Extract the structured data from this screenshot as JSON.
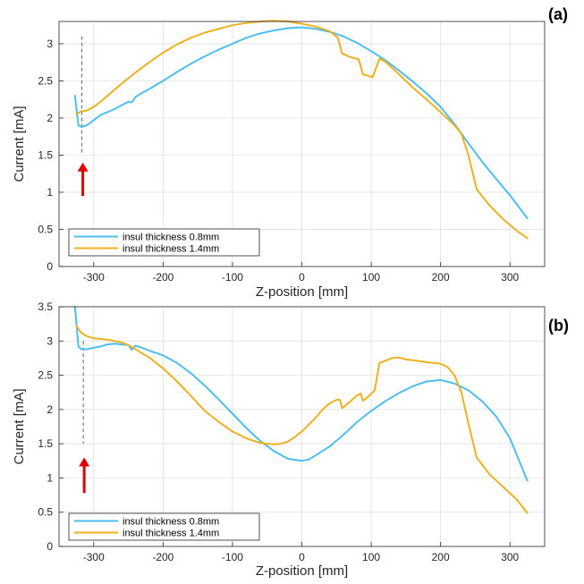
{
  "chart_data": [
    {
      "type": "line",
      "panel_label": "(a)",
      "xlabel": "Z-position [mm]",
      "ylabel": "Current [mA]",
      "xlim": [
        -350,
        350
      ],
      "ylim": [
        0,
        3.3
      ],
      "xticks": [
        -300,
        -200,
        -100,
        0,
        100,
        200,
        300
      ],
      "yticks": [
        0,
        0.5,
        1,
        1.5,
        2,
        2.5,
        3
      ],
      "ytick_labels": [
        "0",
        "0.5",
        "1",
        "1.5",
        "2",
        "2.5",
        "3"
      ],
      "grid": true,
      "legend_position": "bottom-left",
      "marker_z": -317,
      "marker_line_y": [
        1.5,
        3.1
      ],
      "arrow_y": [
        0.95,
        1.4
      ],
      "series": [
        {
          "name": "insul thickness 0.8mm",
          "color": "#4DBEEE",
          "x": [
            -327,
            -322,
            -318,
            -310,
            -300,
            -290,
            -280,
            -270,
            -260,
            -250,
            -245,
            -240,
            -230,
            -220,
            -200,
            -180,
            -160,
            -140,
            -120,
            -100,
            -80,
            -60,
            -40,
            -20,
            0,
            20,
            40,
            60,
            80,
            100,
            120,
            140,
            160,
            180,
            200,
            220,
            240,
            260,
            280,
            300,
            325
          ],
          "y": [
            2.3,
            1.9,
            1.88,
            1.9,
            1.97,
            2.04,
            2.08,
            2.12,
            2.17,
            2.22,
            2.21,
            2.28,
            2.34,
            2.39,
            2.5,
            2.62,
            2.73,
            2.83,
            2.92,
            3.0,
            3.08,
            3.14,
            3.18,
            3.21,
            3.22,
            3.2,
            3.16,
            3.1,
            3.01,
            2.9,
            2.78,
            2.64,
            2.49,
            2.33,
            2.15,
            1.92,
            1.66,
            1.41,
            1.18,
            0.96,
            0.65
          ]
        },
        {
          "name": "insul thickness 1.4mm",
          "color": "#EDB120",
          "x": [
            -325,
            -318,
            -310,
            -300,
            -290,
            -280,
            -260,
            -240,
            -220,
            -200,
            -180,
            -160,
            -140,
            -120,
            -100,
            -80,
            -60,
            -40,
            -20,
            0,
            20,
            40,
            52,
            58,
            70,
            82,
            88,
            102,
            112,
            120,
            140,
            160,
            180,
            200,
            220,
            230,
            240,
            252,
            270,
            290,
            310,
            325
          ],
          "y": [
            2.05,
            2.09,
            2.1,
            2.15,
            2.22,
            2.3,
            2.46,
            2.61,
            2.75,
            2.88,
            2.99,
            3.08,
            3.15,
            3.2,
            3.25,
            3.28,
            3.3,
            3.31,
            3.3,
            3.27,
            3.23,
            3.17,
            3.08,
            2.87,
            2.82,
            2.79,
            2.59,
            2.55,
            2.8,
            2.76,
            2.59,
            2.41,
            2.25,
            2.08,
            1.9,
            1.79,
            1.5,
            1.04,
            0.83,
            0.64,
            0.48,
            0.38
          ]
        }
      ]
    },
    {
      "type": "line",
      "panel_label": "(b)",
      "xlabel": "Z-position [mm]",
      "ylabel": "Current [mA]",
      "xlim": [
        -350,
        350
      ],
      "ylim": [
        0,
        3.5
      ],
      "xticks": [
        -300,
        -200,
        -100,
        0,
        100,
        200,
        300
      ],
      "yticks": [
        0,
        0.5,
        1,
        1.5,
        2,
        2.5,
        3,
        3.5
      ],
      "ytick_labels": [
        "0",
        "0.5",
        "1",
        "1.5",
        "2",
        "2.5",
        "3",
        "3.5"
      ],
      "grid": true,
      "legend_position": "bottom-left",
      "marker_z": -315,
      "marker_line_y": [
        1.5,
        3.0
      ],
      "arrow_y": [
        0.78,
        1.3
      ],
      "series": [
        {
          "name": "insul thickness 0.8mm",
          "color": "#4DBEEE",
          "x": [
            -327,
            -322,
            -318,
            -310,
            -300,
            -290,
            -280,
            -270,
            -260,
            -250,
            -245,
            -240,
            -230,
            -220,
            -200,
            -180,
            -160,
            -140,
            -120,
            -100,
            -80,
            -60,
            -40,
            -20,
            0,
            10,
            20,
            40,
            60,
            80,
            100,
            120,
            140,
            160,
            180,
            200,
            220,
            240,
            260,
            280,
            300,
            325
          ],
          "y": [
            3.5,
            2.92,
            2.88,
            2.88,
            2.9,
            2.92,
            2.95,
            2.96,
            2.95,
            2.94,
            2.87,
            2.93,
            2.9,
            2.86,
            2.79,
            2.68,
            2.53,
            2.35,
            2.15,
            1.94,
            1.73,
            1.54,
            1.39,
            1.28,
            1.25,
            1.27,
            1.33,
            1.46,
            1.63,
            1.82,
            1.98,
            2.12,
            2.24,
            2.34,
            2.41,
            2.43,
            2.38,
            2.28,
            2.12,
            1.9,
            1.58,
            0.96
          ]
        },
        {
          "name": "insul thickness 1.4mm",
          "color": "#EDB120",
          "x": [
            -325,
            -318,
            -310,
            -300,
            -290,
            -280,
            -270,
            -260,
            -250,
            -240,
            -220,
            -200,
            -180,
            -160,
            -140,
            -120,
            -100,
            -80,
            -60,
            -40,
            -30,
            -20,
            -10,
            0,
            10,
            20,
            30,
            40,
            50,
            55,
            58,
            62,
            70,
            80,
            85,
            88,
            95,
            105,
            112,
            120,
            130,
            140,
            150,
            160,
            180,
            200,
            210,
            220,
            230,
            240,
            252,
            270,
            290,
            310,
            325
          ],
          "y": [
            3.22,
            3.12,
            3.07,
            3.04,
            3.03,
            3.02,
            3.0,
            2.98,
            2.94,
            2.88,
            2.76,
            2.6,
            2.41,
            2.2,
            1.98,
            1.82,
            1.68,
            1.58,
            1.51,
            1.49,
            1.5,
            1.53,
            1.6,
            1.68,
            1.78,
            1.88,
            2.0,
            2.09,
            2.14,
            2.14,
            2.02,
            2.05,
            2.12,
            2.21,
            2.23,
            2.13,
            2.18,
            2.28,
            2.68,
            2.71,
            2.75,
            2.76,
            2.73,
            2.72,
            2.69,
            2.67,
            2.62,
            2.5,
            2.25,
            1.8,
            1.3,
            1.06,
            0.87,
            0.68,
            0.49
          ]
        }
      ]
    }
  ]
}
